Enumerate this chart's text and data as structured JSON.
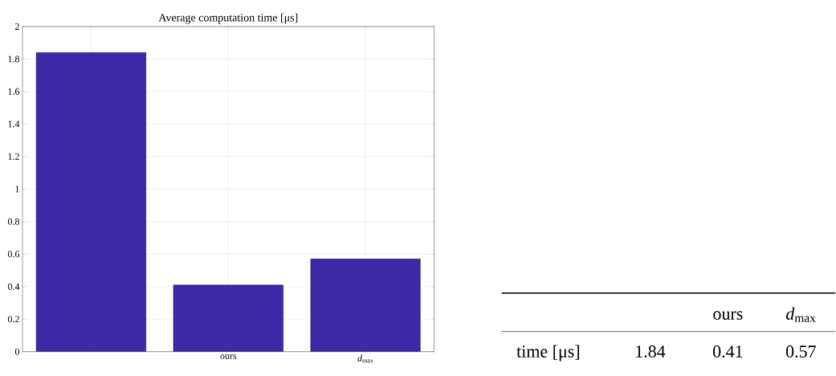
{
  "chart_data": {
    "type": "bar",
    "title": "Average computation time [μs]",
    "categories": [
      null,
      "ours",
      "*d*$_{max}$"
    ],
    "values": [
      1.84,
      0.41,
      0.57
    ],
    "color": "#3d28a8",
    "ylim": [
      0,
      2
    ],
    "yticks": [
      0,
      0.2,
      0.4,
      0.6,
      0.8,
      1,
      1.2,
      1.4,
      1.6,
      1.8,
      2
    ],
    "grid": true,
    "annotations": [
      "time [μs]",
      "1.84",
      "0.41",
      "0.57"
    ]
  }
}
